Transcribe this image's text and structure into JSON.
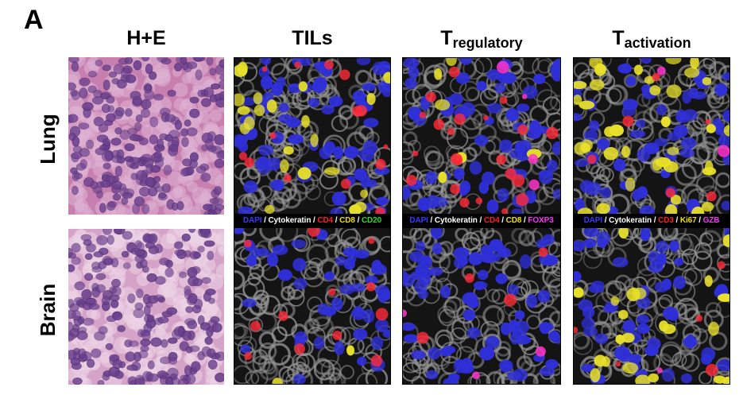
{
  "figure": {
    "panel_letter": "A",
    "columns": {
      "he": "H+E",
      "tils": "TILs",
      "treg_main": "T",
      "treg_sub": "regulatory",
      "tact_main": "T",
      "tact_sub": "activation"
    },
    "rows": {
      "lung": "Lung",
      "brain": "Brain"
    },
    "legends": {
      "tils": [
        {
          "text": "DAPI",
          "color": "#3a3aff"
        },
        {
          "text": "Cytokeratin",
          "color": "#ffffff"
        },
        {
          "text": "CD4",
          "color": "#ff2020"
        },
        {
          "text": "CD8",
          "color": "#f0e000"
        },
        {
          "text": "CD20",
          "color": "#20e020"
        }
      ],
      "treg": [
        {
          "text": "DAPI",
          "color": "#3a3aff"
        },
        {
          "text": "Cytokeratin",
          "color": "#ffffff"
        },
        {
          "text": "CD4",
          "color": "#ff2020"
        },
        {
          "text": "CD8",
          "color": "#f0e000"
        },
        {
          "text": "FOXP3",
          "color": "#ff30ff"
        }
      ],
      "tact": [
        {
          "text": "DAPI",
          "color": "#3a3aff"
        },
        {
          "text": "Cytokeratin",
          "color": "#ffffff"
        },
        {
          "text": "CD3",
          "color": "#ff2020"
        },
        {
          "text": "Ki67",
          "color": "#f0e000"
        },
        {
          "text": "GZB",
          "color": "#ff30ff"
        }
      ]
    }
  },
  "colors": {
    "he_bg": "#c77fb0",
    "he_nucleus": "#6a3f8e",
    "fluor_bg": "#141414",
    "cytokeratin": "#9a9a9a",
    "dapi": "#2f2fd8",
    "cd8": "#e8e02a",
    "cd4": "#ff2a3a",
    "magenta": "#ff33cc"
  }
}
